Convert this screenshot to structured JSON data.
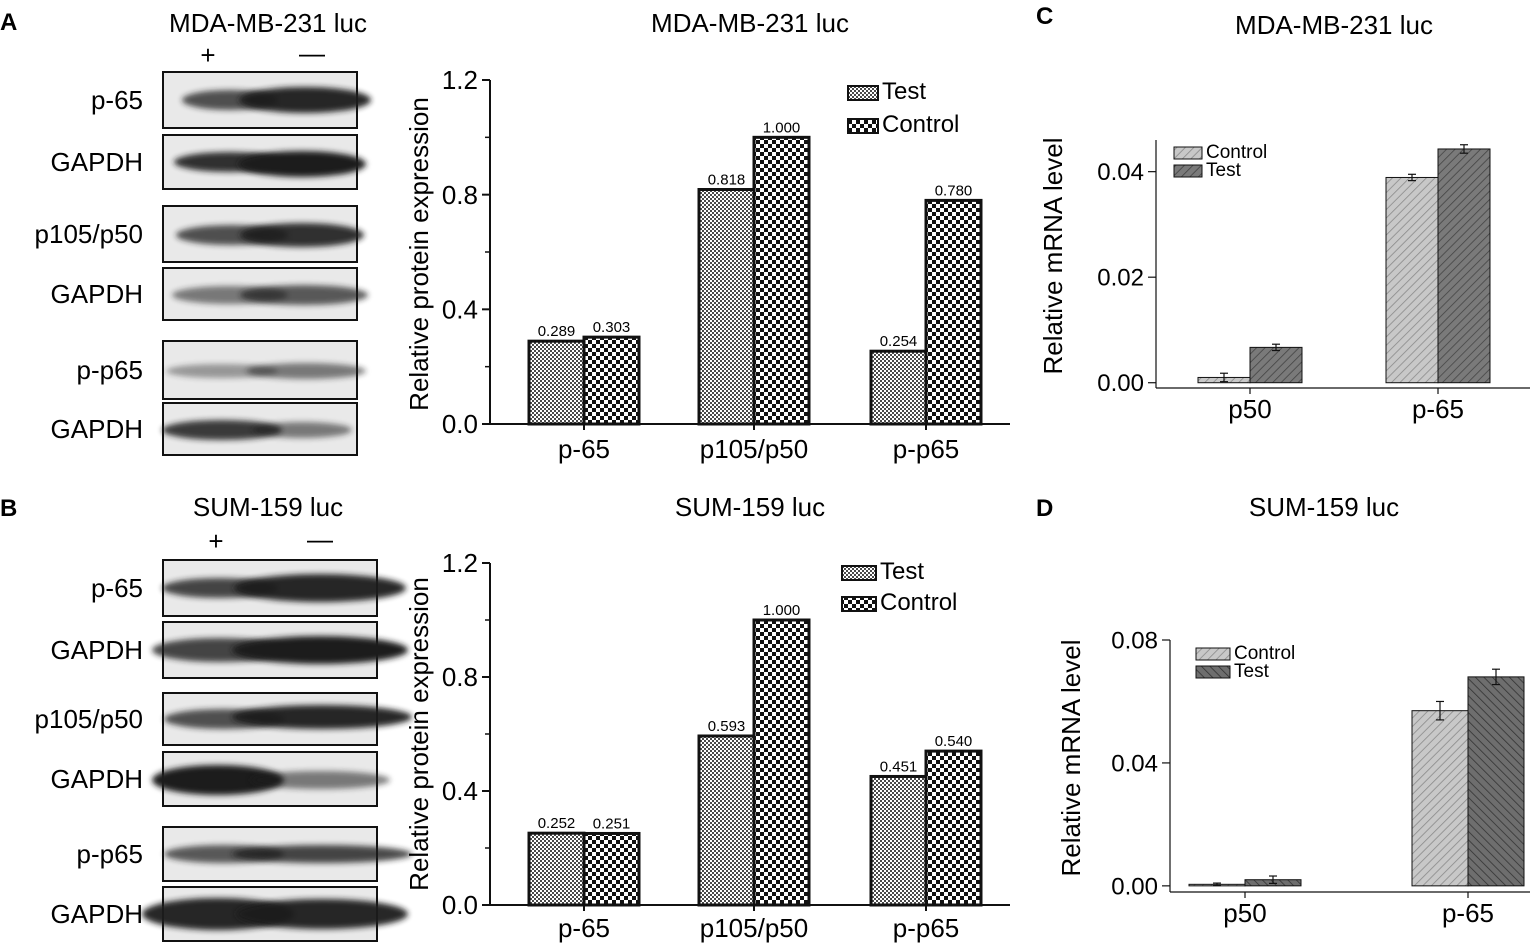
{
  "panels": {
    "A": {
      "letter": "A",
      "cell_line": "MDA-MB-231 luc",
      "treatment_plus": "+",
      "treatment_minus": "—",
      "blot_labels": [
        "p-65",
        "GAPDH",
        "p105/p50",
        "GAPDH",
        "p-p65",
        "GAPDH"
      ]
    },
    "B": {
      "letter": "B",
      "cell_line": "SUM-159 luc",
      "treatment_plus": "+",
      "treatment_minus": "—",
      "blot_labels": [
        "p-65",
        "GAPDH",
        "p105/p50",
        "GAPDH",
        "p-p65",
        "GAPDH"
      ]
    },
    "C": {
      "letter": "C"
    },
    "D": {
      "letter": "D"
    }
  },
  "colors": {
    "ink": "#111111",
    "hatch_light": "#c8c8c8",
    "hatch_dark": "#6e6e6e",
    "blot_band": "#1e1e1e"
  },
  "chart_data": [
    {
      "id": "A-bar",
      "type": "bar",
      "title": "MDA-MB-231 luc",
      "xlabel": "",
      "ylabel": "Relative protein expression",
      "categories": [
        "p-65",
        "p105/p50",
        "p-p65"
      ],
      "series": [
        {
          "name": "Test",
          "values": [
            0.289,
            0.818,
            0.254
          ],
          "labels": [
            "0.289",
            "0.818",
            "0.254"
          ]
        },
        {
          "name": "Control",
          "values": [
            0.303,
            1.0,
            0.78
          ],
          "labels": [
            "0.303",
            "1.000",
            "0.780"
          ]
        }
      ],
      "ylim": [
        0,
        1.2
      ],
      "yticks": [
        0.0,
        0.4,
        0.8,
        1.2
      ],
      "ytick_labels": [
        "0.0",
        "0.4",
        "0.8",
        "1.2"
      ],
      "legend": "top-right"
    },
    {
      "id": "B-bar",
      "type": "bar",
      "title": "SUM-159 luc",
      "xlabel": "",
      "ylabel": "Relative protein expression",
      "categories": [
        "p-65",
        "p105/p50",
        "p-p65"
      ],
      "series": [
        {
          "name": "Test",
          "values": [
            0.252,
            0.593,
            0.451
          ],
          "labels": [
            "0.252",
            "0.593",
            "0.451"
          ]
        },
        {
          "name": "Control",
          "values": [
            0.251,
            1.0,
            0.54
          ],
          "labels": [
            "0.251",
            "1.000",
            "0.540"
          ]
        }
      ],
      "ylim": [
        0,
        1.2
      ],
      "yticks": [
        0.0,
        0.4,
        0.8,
        1.2
      ],
      "ytick_labels": [
        "0.0",
        "0.4",
        "0.8",
        "1.2"
      ],
      "legend": "top-right"
    },
    {
      "id": "C-bar",
      "type": "bar",
      "title": "MDA-MB-231 luc",
      "xlabel": "",
      "ylabel": "Relative mRNA level",
      "categories": [
        "p50",
        "p-65"
      ],
      "series": [
        {
          "name": "Control",
          "values": [
            0.001,
            0.0389
          ],
          "errors": [
            0.0008,
            0.0006
          ]
        },
        {
          "name": "Test",
          "values": [
            0.0067,
            0.0443
          ],
          "errors": [
            0.0006,
            0.0008
          ]
        }
      ],
      "ylim": [
        -0.001,
        0.046
      ],
      "yticks": [
        0.0,
        0.02,
        0.04
      ],
      "ytick_labels": [
        "0.00",
        "0.02",
        "0.04"
      ],
      "legend": "top-left"
    },
    {
      "id": "D-bar",
      "type": "bar",
      "title": "SUM-159 luc",
      "xlabel": "",
      "ylabel": "Relative mRNA level",
      "categories": [
        "p50",
        "p-65"
      ],
      "series": [
        {
          "name": "Control",
          "values": [
            0.0005,
            0.057
          ],
          "errors": [
            0.0004,
            0.003
          ]
        },
        {
          "name": "Test",
          "values": [
            0.002,
            0.068
          ],
          "errors": [
            0.0012,
            0.0025
          ]
        }
      ],
      "ylim": [
        -0.002,
        0.08
      ],
      "yticks": [
        0.0,
        0.04,
        0.08
      ],
      "ytick_labels": [
        "0.00",
        "0.04",
        "0.08"
      ],
      "legend": "top-left"
    }
  ]
}
